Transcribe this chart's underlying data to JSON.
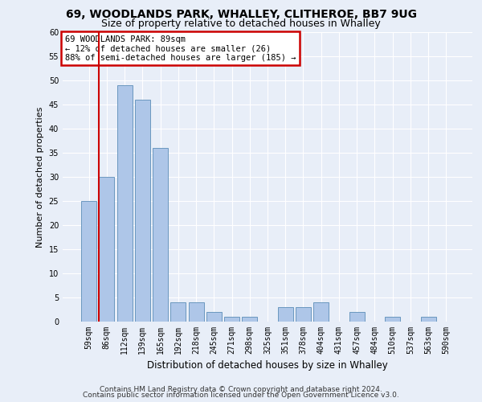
{
  "title_line1": "69, WOODLANDS PARK, WHALLEY, CLITHEROE, BB7 9UG",
  "title_line2": "Size of property relative to detached houses in Whalley",
  "xlabel": "Distribution of detached houses by size in Whalley",
  "ylabel": "Number of detached properties",
  "categories": [
    "59sqm",
    "86sqm",
    "112sqm",
    "139sqm",
    "165sqm",
    "192sqm",
    "218sqm",
    "245sqm",
    "271sqm",
    "298sqm",
    "325sqm",
    "351sqm",
    "378sqm",
    "404sqm",
    "431sqm",
    "457sqm",
    "484sqm",
    "510sqm",
    "537sqm",
    "563sqm",
    "590sqm"
  ],
  "values": [
    25,
    30,
    49,
    46,
    36,
    4,
    4,
    2,
    1,
    1,
    0,
    3,
    3,
    4,
    0,
    2,
    0,
    1,
    0,
    1,
    0
  ],
  "bar_color": "#aec6e8",
  "bar_edge_color": "#5b8db8",
  "highlight_bar_index": 1,
  "highlight_color": "#cc0000",
  "ylim": [
    0,
    60
  ],
  "yticks": [
    0,
    5,
    10,
    15,
    20,
    25,
    30,
    35,
    40,
    45,
    50,
    55,
    60
  ],
  "annotation_box_text": "69 WOODLANDS PARK: 89sqm\n← 12% of detached houses are smaller (26)\n88% of semi-detached houses are larger (185) →",
  "annotation_box_color": "#ffffff",
  "annotation_box_edge_color": "#cc0000",
  "footer_line1": "Contains HM Land Registry data © Crown copyright and database right 2024.",
  "footer_line2": "Contains public sector information licensed under the Open Government Licence v3.0.",
  "background_color": "#e8eef8",
  "grid_color": "#ffffff",
  "title_fontsize": 10,
  "subtitle_fontsize": 9,
  "tick_fontsize": 7,
  "ylabel_fontsize": 8,
  "xlabel_fontsize": 8.5,
  "footer_fontsize": 6.5,
  "ann_fontsize": 7.5
}
